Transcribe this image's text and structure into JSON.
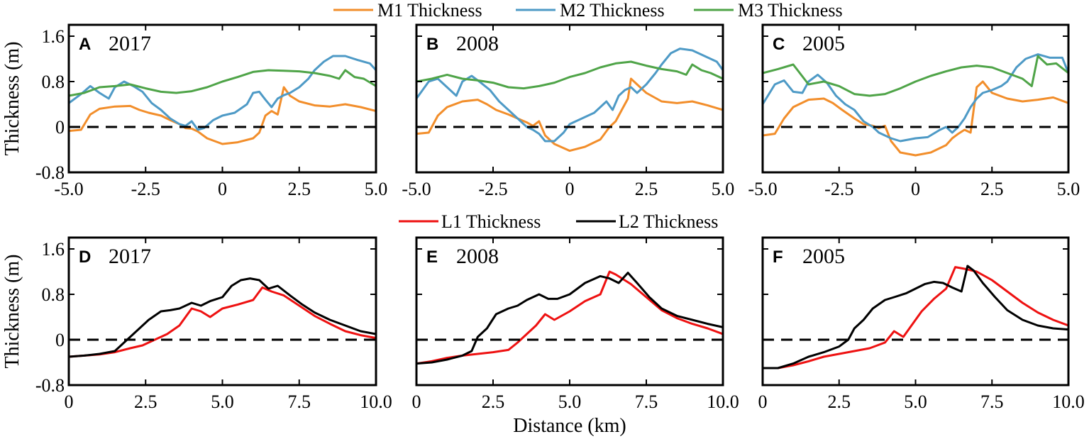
{
  "figure": {
    "top_legend": [
      {
        "label": "M1 Thickness",
        "color": "#f28e2b"
      },
      {
        "label": "M2 Thickness",
        "color": "#4e9ac6"
      },
      {
        "label": "M3 Thickness",
        "color": "#4fa448"
      }
    ],
    "bottom_legend": [
      {
        "label": "L1 Thickness",
        "color": "#ee1111"
      },
      {
        "label": "L2 Thickness",
        "color": "#000000"
      }
    ],
    "xlabel_bottom": "Distance (km)"
  },
  "chart_data": [
    {
      "id": "A",
      "type": "line",
      "panel_letter": "A",
      "panel_year": "2017",
      "ylabel": "Thickness (m)",
      "xlim": [
        -5,
        5
      ],
      "ylim": [
        -0.8,
        1.8
      ],
      "xticks": [
        "-5.0",
        "-2.5",
        "0",
        "2.5",
        "5.0"
      ],
      "yticks": [
        "-0.8",
        "0",
        "0.8",
        "1.6"
      ],
      "reference_line": 0,
      "series": [
        {
          "name": "M1 Thickness",
          "color": "#f28e2b",
          "x": [
            -5,
            -4.6,
            -4.3,
            -4,
            -3.5,
            -3,
            -2.7,
            -2.4,
            -2,
            -1.7,
            -1.4,
            -1.2,
            -1,
            -0.8,
            -0.5,
            0,
            0.5,
            1,
            1.2,
            1.4,
            1.6,
            1.8,
            2,
            2.2,
            2.5,
            3,
            3.5,
            4,
            4.5,
            5
          ],
          "y": [
            -0.07,
            -0.05,
            0.22,
            0.32,
            0.36,
            0.37,
            0.3,
            0.25,
            0.2,
            0.12,
            0.05,
            -0.02,
            -0.03,
            -0.08,
            -0.2,
            -0.3,
            -0.27,
            -0.2,
            -0.1,
            0.2,
            0.28,
            0.22,
            0.7,
            0.55,
            0.45,
            0.38,
            0.36,
            0.4,
            0.35,
            0.28
          ]
        },
        {
          "name": "M2 Thickness",
          "color": "#4e9ac6",
          "x": [
            -5,
            -4.6,
            -4.3,
            -4,
            -3.7,
            -3.5,
            -3.2,
            -2.9,
            -2.6,
            -2.3,
            -2,
            -1.7,
            -1.4,
            -1.2,
            -1,
            -0.8,
            -0.6,
            -0.3,
            0,
            0.4,
            0.8,
            1,
            1.2,
            1.4,
            1.6,
            1.8,
            2,
            2.2,
            2.5,
            2.8,
            3,
            3.3,
            3.6,
            4,
            4.4,
            4.8,
            5
          ],
          "y": [
            0.42,
            0.58,
            0.72,
            0.6,
            0.5,
            0.7,
            0.8,
            0.72,
            0.62,
            0.42,
            0.3,
            0.15,
            0.05,
            0.02,
            0.1,
            -0.05,
            -0.02,
            0.12,
            0.2,
            0.25,
            0.4,
            0.6,
            0.62,
            0.48,
            0.35,
            0.5,
            0.56,
            0.6,
            0.7,
            0.85,
            1.0,
            1.15,
            1.25,
            1.25,
            1.18,
            1.12,
            1.0
          ]
        },
        {
          "name": "M3 Thickness",
          "color": "#4fa448",
          "x": [
            -5,
            -4.5,
            -4,
            -3.5,
            -3,
            -2.5,
            -2,
            -1.5,
            -1,
            -0.5,
            0,
            0.5,
            1,
            1.5,
            2,
            2.5,
            3,
            3.5,
            3.8,
            4,
            4.3,
            4.6,
            5
          ],
          "y": [
            0.55,
            0.6,
            0.7,
            0.72,
            0.75,
            0.68,
            0.62,
            0.6,
            0.63,
            0.7,
            0.8,
            0.88,
            0.97,
            1.0,
            0.99,
            0.98,
            0.95,
            0.9,
            0.85,
            1.0,
            0.88,
            0.85,
            0.72
          ]
        }
      ]
    },
    {
      "id": "B",
      "type": "line",
      "panel_letter": "B",
      "panel_year": "2008",
      "ylabel": "",
      "xlim": [
        -5,
        5
      ],
      "ylim": [
        -0.8,
        1.8
      ],
      "xticks": [
        "-5.0",
        "-2.5",
        "0",
        "2.5",
        "5.0"
      ],
      "yticks": [],
      "reference_line": 0,
      "series": [
        {
          "name": "M1 Thickness",
          "color": "#f28e2b",
          "x": [
            -5,
            -4.6,
            -4.3,
            -4,
            -3.5,
            -3,
            -2.7,
            -2.4,
            -2,
            -1.7,
            -1.4,
            -1.2,
            -1,
            -0.8,
            -0.5,
            0,
            0.5,
            1,
            1.3,
            1.5,
            1.7,
            1.9,
            2,
            2.2,
            2.5,
            3,
            3.5,
            4,
            4.5,
            5
          ],
          "y": [
            -0.12,
            -0.1,
            0.2,
            0.35,
            0.45,
            0.48,
            0.4,
            0.3,
            0.22,
            0.15,
            0.08,
            0.02,
            0.1,
            -0.15,
            -0.3,
            -0.42,
            -0.35,
            -0.22,
            0.0,
            0.1,
            0.3,
            0.5,
            0.85,
            0.75,
            0.6,
            0.45,
            0.42,
            0.45,
            0.38,
            0.3
          ]
        },
        {
          "name": "M2 Thickness",
          "color": "#4e9ac6",
          "x": [
            -5,
            -4.6,
            -4.3,
            -4,
            -3.7,
            -3.5,
            -3.2,
            -2.9,
            -2.6,
            -2.3,
            -2,
            -1.7,
            -1.4,
            -1.2,
            -1,
            -0.8,
            -0.5,
            -0.2,
            0,
            0.4,
            0.8,
            1,
            1.2,
            1.4,
            1.6,
            1.8,
            2,
            2.2,
            2.5,
            2.8,
            3,
            3.3,
            3.6,
            4,
            4.4,
            4.8,
            5
          ],
          "y": [
            0.5,
            0.8,
            0.85,
            0.7,
            0.55,
            0.8,
            0.9,
            0.78,
            0.65,
            0.45,
            0.3,
            0.15,
            0.0,
            -0.05,
            -0.12,
            -0.25,
            -0.25,
            -0.1,
            0.05,
            0.15,
            0.25,
            0.35,
            0.45,
            0.3,
            0.55,
            0.65,
            0.7,
            0.6,
            0.75,
            0.95,
            1.1,
            1.3,
            1.38,
            1.35,
            1.25,
            1.15,
            1.0
          ]
        },
        {
          "name": "M3 Thickness",
          "color": "#4fa448",
          "x": [
            -5,
            -4.5,
            -4,
            -3.5,
            -3,
            -2.5,
            -2,
            -1.5,
            -1,
            -0.5,
            0,
            0.5,
            1,
            1.5,
            2,
            2.5,
            3,
            3.5,
            3.8,
            4,
            4.3,
            4.6,
            5
          ],
          "y": [
            0.8,
            0.85,
            0.92,
            0.85,
            0.82,
            0.78,
            0.7,
            0.68,
            0.72,
            0.78,
            0.88,
            0.95,
            1.05,
            1.12,
            1.15,
            1.08,
            1.02,
            0.98,
            0.92,
            1.1,
            1.0,
            0.95,
            0.85
          ]
        }
      ]
    },
    {
      "id": "C",
      "type": "line",
      "panel_letter": "C",
      "panel_year": "2005",
      "ylabel": "",
      "xlim": [
        -5,
        5
      ],
      "ylim": [
        -0.8,
        1.8
      ],
      "xticks": [
        "-5.0",
        "-2.5",
        "0",
        "2.5",
        "5.0"
      ],
      "yticks": [],
      "reference_line": 0,
      "series": [
        {
          "name": "M1 Thickness",
          "color": "#f28e2b",
          "x": [
            -5,
            -4.6,
            -4.3,
            -4,
            -3.5,
            -3,
            -2.7,
            -2.4,
            -2,
            -1.7,
            -1.4,
            -1.2,
            -1,
            -0.8,
            -0.5,
            0,
            0.5,
            1,
            1.2,
            1.4,
            1.6,
            1.8,
            2,
            2.2,
            2.5,
            3,
            3.5,
            4,
            4.5,
            5
          ],
          "y": [
            -0.15,
            -0.12,
            0.15,
            0.35,
            0.48,
            0.5,
            0.42,
            0.3,
            0.15,
            0.05,
            0.02,
            -0.02,
            0.02,
            -0.25,
            -0.45,
            -0.5,
            -0.45,
            -0.32,
            -0.2,
            -0.12,
            -0.05,
            -0.1,
            0.7,
            0.8,
            0.6,
            0.5,
            0.45,
            0.48,
            0.52,
            0.42
          ]
        },
        {
          "name": "M2 Thickness",
          "color": "#4e9ac6",
          "x": [
            -5,
            -4.6,
            -4.3,
            -4,
            -3.7,
            -3.5,
            -3.2,
            -2.9,
            -2.6,
            -2.3,
            -2,
            -1.7,
            -1.4,
            -1.2,
            -1,
            -0.8,
            -0.5,
            -0.2,
            0,
            0.4,
            0.8,
            1,
            1.2,
            1.4,
            1.6,
            1.8,
            2,
            2.2,
            2.5,
            2.8,
            3,
            3.3,
            3.6,
            4,
            4.4,
            4.8,
            5
          ],
          "y": [
            0.4,
            0.75,
            0.82,
            0.62,
            0.6,
            0.8,
            0.92,
            0.78,
            0.55,
            0.4,
            0.3,
            0.1,
            0.0,
            -0.1,
            -0.15,
            -0.2,
            -0.25,
            -0.22,
            -0.2,
            -0.18,
            -0.05,
            0.0,
            -0.1,
            0.0,
            0.15,
            0.35,
            0.5,
            0.6,
            0.65,
            0.72,
            0.8,
            1.05,
            1.2,
            1.28,
            1.22,
            1.22,
            0.95
          ]
        },
        {
          "name": "M3 Thickness",
          "color": "#4fa448",
          "x": [
            -5,
            -4.5,
            -4,
            -3.5,
            -3,
            -2.5,
            -2,
            -1.5,
            -1,
            -0.5,
            0,
            0.5,
            1,
            1.5,
            2,
            2.5,
            3,
            3.5,
            3.8,
            4,
            4.3,
            4.6,
            5
          ],
          "y": [
            0.95,
            1.02,
            1.1,
            0.75,
            0.8,
            0.72,
            0.58,
            0.55,
            0.58,
            0.68,
            0.8,
            0.9,
            0.98,
            1.05,
            1.08,
            1.05,
            0.95,
            0.85,
            0.72,
            1.25,
            1.1,
            1.12,
            0.95
          ]
        }
      ]
    },
    {
      "id": "D",
      "type": "line",
      "panel_letter": "D",
      "panel_year": "2017",
      "ylabel": "Thickness (m)",
      "xlabel": "",
      "xlim": [
        0,
        10
      ],
      "ylim": [
        -0.8,
        1.8
      ],
      "xticks": [
        "0",
        "2.5",
        "5.0",
        "7.5",
        "10.0"
      ],
      "yticks": [
        "-0.8",
        "0",
        "0.8",
        "1.6"
      ],
      "reference_line": 0,
      "series": [
        {
          "name": "L1 Thickness",
          "color": "#ee1111",
          "x": [
            0,
            0.5,
            1,
            1.5,
            2,
            2.4,
            2.8,
            3.2,
            3.6,
            4,
            4.3,
            4.6,
            5,
            5.5,
            6,
            6.3,
            6.6,
            7,
            7.5,
            8,
            8.5,
            9,
            9.5,
            10
          ],
          "y": [
            -0.3,
            -0.28,
            -0.26,
            -0.22,
            -0.15,
            -0.1,
            0.0,
            0.1,
            0.25,
            0.55,
            0.5,
            0.4,
            0.55,
            0.62,
            0.7,
            0.92,
            0.85,
            0.78,
            0.6,
            0.42,
            0.28,
            0.15,
            0.08,
            0.03
          ]
        },
        {
          "name": "L2 Thickness",
          "color": "#000000",
          "x": [
            0,
            0.5,
            1,
            1.5,
            1.8,
            2,
            2.3,
            2.6,
            3,
            3.3,
            3.6,
            4,
            4.3,
            4.6,
            5,
            5.3,
            5.6,
            5.9,
            6.2,
            6.5,
            6.8,
            7.2,
            7.6,
            8,
            8.5,
            9,
            9.5,
            10
          ],
          "y": [
            -0.3,
            -0.28,
            -0.25,
            -0.2,
            -0.05,
            0.05,
            0.2,
            0.35,
            0.5,
            0.52,
            0.55,
            0.65,
            0.6,
            0.68,
            0.75,
            0.95,
            1.05,
            1.08,
            1.05,
            0.9,
            0.95,
            0.78,
            0.62,
            0.48,
            0.35,
            0.25,
            0.15,
            0.1
          ]
        }
      ]
    },
    {
      "id": "E",
      "type": "line",
      "panel_letter": "E",
      "panel_year": "2008",
      "ylabel": "",
      "xlabel": "Distance (km)",
      "xlim": [
        0,
        10
      ],
      "ylim": [
        -0.8,
        1.8
      ],
      "xticks": [
        "0",
        "2.5",
        "5.0",
        "7.5",
        "10.0"
      ],
      "yticks": [],
      "reference_line": 0,
      "series": [
        {
          "name": "L1 Thickness",
          "color": "#ee1111",
          "x": [
            0,
            0.5,
            1,
            1.5,
            2,
            2.5,
            3,
            3.3,
            3.6,
            3.9,
            4.2,
            4.5,
            5,
            5.5,
            6,
            6.3,
            6.5,
            7,
            7.5,
            8,
            8.5,
            9,
            9.5,
            10
          ],
          "y": [
            -0.42,
            -0.38,
            -0.32,
            -0.28,
            -0.25,
            -0.22,
            -0.18,
            -0.05,
            0.1,
            0.25,
            0.45,
            0.35,
            0.5,
            0.68,
            0.8,
            1.2,
            1.15,
            0.98,
            0.75,
            0.52,
            0.38,
            0.28,
            0.2,
            0.1
          ]
        },
        {
          "name": "L2 Thickness",
          "color": "#000000",
          "x": [
            0,
            0.5,
            1,
            1.5,
            1.8,
            2,
            2.3,
            2.6,
            3,
            3.3,
            3.6,
            4,
            4.3,
            4.6,
            5,
            5.5,
            6,
            6.3,
            6.6,
            6.9,
            7.2,
            7.6,
            8,
            8.5,
            9,
            9.5,
            10
          ],
          "y": [
            -0.42,
            -0.4,
            -0.35,
            -0.28,
            -0.2,
            0.05,
            0.2,
            0.45,
            0.55,
            0.6,
            0.7,
            0.8,
            0.72,
            0.72,
            0.8,
            1.0,
            1.12,
            1.08,
            1.0,
            1.18,
            1.0,
            0.75,
            0.55,
            0.42,
            0.35,
            0.28,
            0.22
          ]
        }
      ]
    },
    {
      "id": "F",
      "type": "line",
      "panel_letter": "F",
      "panel_year": "2005",
      "ylabel": "",
      "xlabel": "",
      "xlim": [
        0,
        10
      ],
      "ylim": [
        -0.8,
        1.8
      ],
      "xticks": [
        "0",
        "2.5",
        "5.0",
        "7.5",
        "10.0"
      ],
      "yticks": [],
      "reference_line": 0,
      "series": [
        {
          "name": "L1 Thickness",
          "color": "#ee1111",
          "x": [
            0,
            0.5,
            1,
            1.5,
            2,
            2.5,
            3,
            3.5,
            4,
            4.3,
            4.6,
            4.8,
            5.2,
            5.6,
            6,
            6.3,
            6.6,
            7,
            7.5,
            8,
            8.5,
            9,
            9.5,
            10
          ],
          "y": [
            -0.5,
            -0.5,
            -0.45,
            -0.38,
            -0.3,
            -0.25,
            -0.2,
            -0.15,
            -0.05,
            0.15,
            0.05,
            0.2,
            0.5,
            0.72,
            0.9,
            1.28,
            1.25,
            1.2,
            1.05,
            0.85,
            0.65,
            0.48,
            0.35,
            0.25
          ]
        },
        {
          "name": "L2 Thickness",
          "color": "#000000",
          "x": [
            0,
            0.5,
            1,
            1.5,
            2,
            2.5,
            2.8,
            3,
            3.3,
            3.6,
            4,
            4.3,
            4.7,
            5,
            5.3,
            5.6,
            5.9,
            6.2,
            6.5,
            6.7,
            6.9,
            7.2,
            7.6,
            8,
            8.5,
            9,
            9.5,
            10
          ],
          "y": [
            -0.5,
            -0.5,
            -0.42,
            -0.3,
            -0.22,
            -0.12,
            0.0,
            0.2,
            0.35,
            0.55,
            0.7,
            0.75,
            0.82,
            0.9,
            0.98,
            1.02,
            1.0,
            0.92,
            0.85,
            1.3,
            1.22,
            1.0,
            0.75,
            0.52,
            0.35,
            0.25,
            0.2,
            0.18
          ]
        }
      ]
    }
  ]
}
